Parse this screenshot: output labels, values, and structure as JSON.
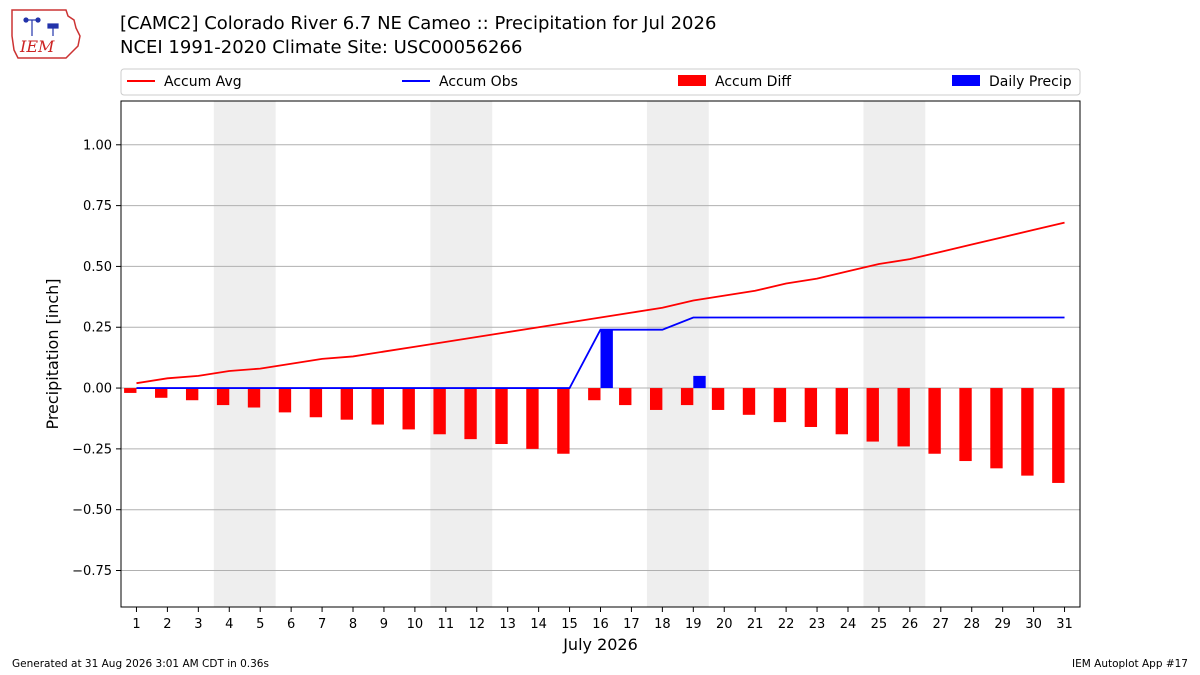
{
  "header": {
    "title_line1": "[CAMC2] Colorado River 6.7 NE Cameo :: Precipitation for Jul 2026",
    "title_line2": "NCEI 1991-2020 Climate Site: USC00056266",
    "logo_text": "IEM"
  },
  "footer": {
    "generated": "Generated at 31 Aug 2026 3:01 AM CDT in 0.36s",
    "app": "IEM Autoplot App #17"
  },
  "chart_data": {
    "type": "bar",
    "xlabel": "July 2026",
    "ylabel": "Precipitation [inch]",
    "ylim": [
      -0.9,
      1.18
    ],
    "yticks": [
      -0.75,
      -0.5,
      -0.25,
      0.0,
      0.25,
      0.5,
      0.75,
      1.0
    ],
    "ytick_labels": [
      "−0.75",
      "−0.50",
      "−0.25",
      "0.00",
      "0.25",
      "0.50",
      "0.75",
      "1.00"
    ],
    "grid": "horizontal",
    "legend_position": "top",
    "days": [
      1,
      2,
      3,
      4,
      5,
      6,
      7,
      8,
      9,
      10,
      11,
      12,
      13,
      14,
      15,
      16,
      17,
      18,
      19,
      20,
      21,
      22,
      23,
      24,
      25,
      26,
      27,
      28,
      29,
      30,
      31
    ],
    "weekend_shading": [
      [
        4,
        5
      ],
      [
        11,
        12
      ],
      [
        18,
        19
      ],
      [
        25,
        26
      ]
    ],
    "colors": {
      "avg": "#ff0000",
      "obs": "#0000ff",
      "diff": "#ff0000",
      "daily": "#0000ff",
      "weekend": "#eeeeee",
      "grid": "#b0b0b0"
    },
    "series": [
      {
        "name": "Accum Avg",
        "kind": "line",
        "values": [
          0.02,
          0.04,
          0.05,
          0.07,
          0.08,
          0.1,
          0.12,
          0.13,
          0.15,
          0.17,
          0.19,
          0.21,
          0.23,
          0.25,
          0.27,
          0.29,
          0.31,
          0.33,
          0.36,
          0.38,
          0.4,
          0.43,
          0.45,
          0.48,
          0.51,
          0.53,
          0.56,
          0.59,
          0.62,
          0.65,
          0.68
        ]
      },
      {
        "name": "Accum Obs",
        "kind": "line",
        "values": [
          0,
          0,
          0,
          0,
          0,
          0,
          0,
          0,
          0,
          0,
          0,
          0,
          0,
          0,
          0,
          0.24,
          0.24,
          0.24,
          0.29,
          0.29,
          0.29,
          0.29,
          0.29,
          0.29,
          0.29,
          0.29,
          0.29,
          0.29,
          0.29,
          0.29,
          0.29
        ]
      },
      {
        "name": "Accum Diff",
        "kind": "bar",
        "offset": -0.2,
        "values": [
          -0.02,
          -0.04,
          -0.05,
          -0.07,
          -0.08,
          -0.1,
          -0.12,
          -0.13,
          -0.15,
          -0.17,
          -0.19,
          -0.21,
          -0.23,
          -0.25,
          -0.27,
          -0.05,
          -0.07,
          -0.09,
          -0.07,
          -0.09,
          -0.11,
          -0.14,
          -0.16,
          -0.19,
          -0.22,
          -0.24,
          -0.27,
          -0.3,
          -0.33,
          -0.36,
          -0.39
        ]
      },
      {
        "name": "Daily Precip",
        "kind": "bar",
        "offset": 0.2,
        "values": [
          0,
          0,
          0,
          0,
          0,
          0,
          0,
          0,
          0,
          0,
          0,
          0,
          0,
          0,
          0,
          0.24,
          0,
          0,
          0.05,
          0,
          0,
          0,
          0,
          0,
          0,
          0,
          0,
          0,
          0,
          0,
          0
        ]
      }
    ]
  }
}
